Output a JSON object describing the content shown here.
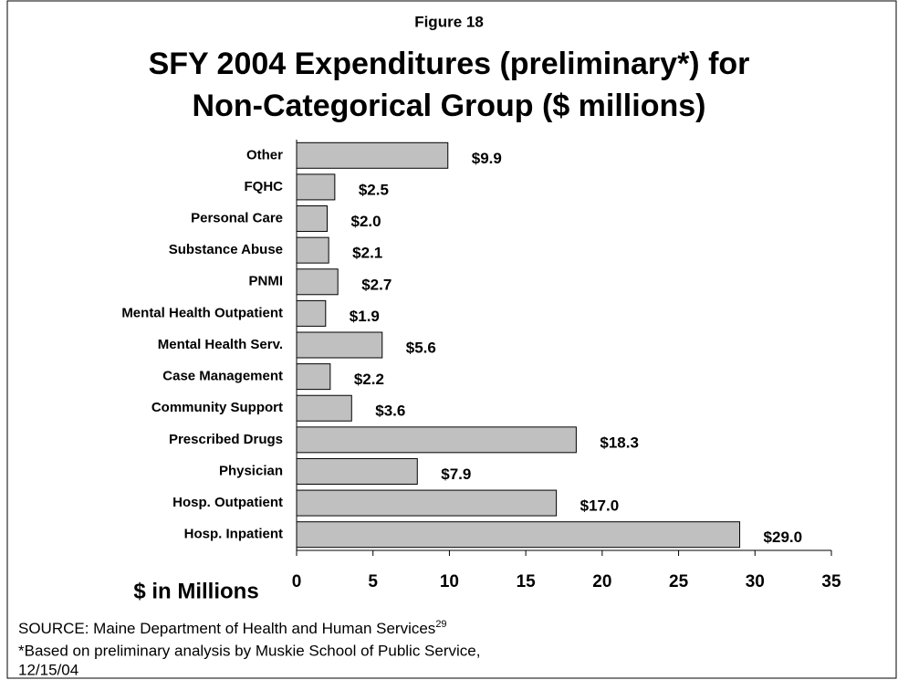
{
  "chart_data": {
    "type": "bar",
    "orientation": "horizontal",
    "figure_label": "Figure 18",
    "title": [
      "SFY 2004 Expenditures (preliminary*) for",
      "Non-Categorical Group ($ millions)"
    ],
    "x_label": "$ in Millions",
    "categories": [
      "Other",
      "FQHC",
      "Personal Care",
      "Substance Abuse",
      "PNMI",
      "Mental Health Outpatient",
      "Mental Health Serv.",
      "Case Management",
      "Community Support",
      "Prescribed Drugs",
      "Physician",
      "Hosp. Outpatient",
      "Hosp. Inpatient"
    ],
    "values": [
      9.9,
      2.5,
      2.0,
      2.1,
      2.7,
      1.9,
      5.6,
      2.2,
      3.6,
      18.3,
      7.9,
      17.0,
      29.0
    ],
    "value_labels": [
      "$9.9",
      "$2.5",
      "$2.0",
      "$2.1",
      "$2.7",
      "$1.9",
      "$5.6",
      "$2.2",
      "$3.6",
      "$18.3",
      "$7.9",
      "$17.0",
      "$29.0"
    ],
    "color": "#c0c0c0",
    "xlim": [
      0,
      35
    ],
    "xticks": [
      0,
      5,
      10,
      15,
      20,
      25,
      30,
      35
    ],
    "source": "SOURCE: Maine Department of Health and Human Services",
    "source_ref": "29",
    "note": [
      "*Based on preliminary analysis by Muskie School of Public Service,",
      "12/15/04"
    ]
  }
}
